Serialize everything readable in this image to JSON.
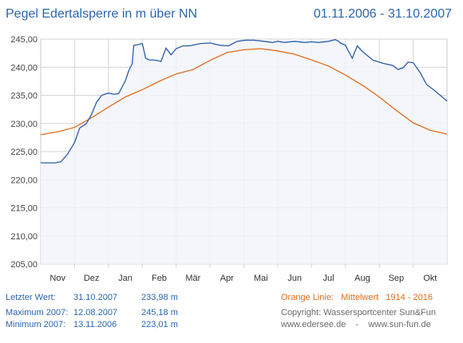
{
  "header": {
    "title": "Pegel Edertalsperre in m über NN",
    "period": "01.11.2006 - 31.10.2007"
  },
  "colors": {
    "level_line": "#2a5ca8",
    "mean_line": "#e06c1a",
    "plot_fill": "#f3f4fc",
    "grid": "#d4d4d4"
  },
  "chart_data": {
    "type": "line",
    "title": "Pegel Edertalsperre in m über NN",
    "ylim": [
      205,
      245
    ],
    "xlim": [
      0,
      12
    ],
    "y_ticks": [
      "205,00",
      "210,00",
      "215,00",
      "220,00",
      "225,00",
      "230,00",
      "235,00",
      "240,00",
      "245,00"
    ],
    "x_tick_labels": [
      "Nov",
      "Dez",
      "Jan",
      "Feb",
      "Mär",
      "Apr",
      "Mai",
      "Jun",
      "Jul",
      "Aug",
      "Sep",
      "Okt"
    ],
    "grid": true,
    "series": [
      {
        "key": "level",
        "x": [
          0,
          0.43,
          0.6,
          0.8,
          1.0,
          1.15,
          1.35,
          1.5,
          1.65,
          1.8,
          2.0,
          2.15,
          2.3,
          2.5,
          2.6,
          2.7,
          2.75,
          2.85,
          3.0,
          3.1,
          3.2,
          3.3,
          3.45,
          3.55,
          3.7,
          3.85,
          4.0,
          4.2,
          4.4,
          4.7,
          5.0,
          5.3,
          5.55,
          5.8,
          6.05,
          6.3,
          6.6,
          6.85,
          7.0,
          7.2,
          7.5,
          7.8,
          8.0,
          8.2,
          8.5,
          8.7,
          8.8,
          8.85,
          9.0,
          9.2,
          9.35,
          9.5,
          9.8,
          10.1,
          10.4,
          10.55,
          10.7,
          10.85,
          11.0,
          11.2,
          11.4,
          11.6,
          11.8,
          12.0
        ],
        "y": [
          223.0,
          223.0,
          223.2,
          224.6,
          226.6,
          229.2,
          230.0,
          231.6,
          233.8,
          235.0,
          235.4,
          235.2,
          235.3,
          237.6,
          239.4,
          240.6,
          243.9,
          244.0,
          244.2,
          241.6,
          241.3,
          241.3,
          241.2,
          241.0,
          243.4,
          242.2,
          243.3,
          243.8,
          243.8,
          244.2,
          244.3,
          243.9,
          243.8,
          244.6,
          244.8,
          244.8,
          244.6,
          244.4,
          244.6,
          244.4,
          244.6,
          244.4,
          244.5,
          244.4,
          244.6,
          244.9,
          244.6,
          244.3,
          243.9,
          241.6,
          243.8,
          242.8,
          241.3,
          240.7,
          240.3,
          239.6,
          239.9,
          240.9,
          240.8,
          239.1,
          236.9,
          236.0,
          235.0,
          233.98
        ]
      },
      {
        "key": "mean",
        "x": [
          0,
          0.5,
          1.0,
          1.5,
          2.0,
          2.5,
          3.0,
          3.5,
          4.0,
          4.5,
          5.0,
          5.5,
          6.0,
          6.5,
          7.0,
          7.5,
          8.0,
          8.5,
          9.0,
          9.5,
          10.0,
          10.5,
          11.0,
          11.5,
          12.0
        ],
        "y": [
          228.0,
          228.5,
          229.3,
          231.0,
          232.9,
          234.7,
          236.0,
          237.5,
          238.8,
          239.6,
          241.2,
          242.6,
          243.1,
          243.3,
          242.9,
          242.3,
          241.3,
          240.2,
          238.6,
          236.8,
          234.7,
          232.3,
          230.1,
          228.8,
          228.1
        ]
      }
    ]
  },
  "stats": {
    "last": {
      "label": "Letzter Wert:",
      "date": "31.10.2007",
      "value": "233,98 m"
    },
    "max": {
      "label": "Maximum 2007:",
      "date": "12.08.2007",
      "value": "245,18 m"
    },
    "min": {
      "label": "Minimum  2007:",
      "date": "13.11.2006",
      "value": "223,01 m"
    }
  },
  "legend_note": {
    "label": "Orange Linie:",
    "text": "Mittelwert",
    "years": "1914 - 2016"
  },
  "credits": {
    "copyright": "Copyright: Wassersportcenter Sun&Fun",
    "sites": "www.edersee.de    -    www.sun-fun.de"
  }
}
